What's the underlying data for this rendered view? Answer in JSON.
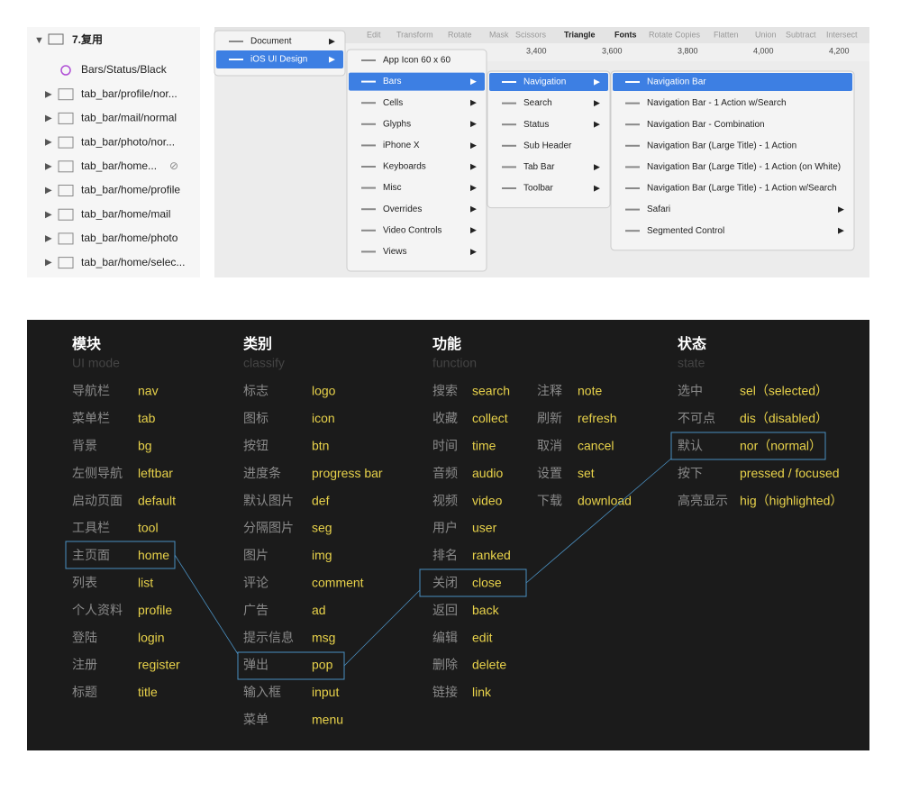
{
  "layers": {
    "group": "7.复用",
    "items": [
      "Bars/Status/Black",
      "tab_bar/profile/nor...",
      "tab_bar/mail/normal",
      "tab_bar/photo/nor...",
      "tab_bar/home...",
      "tab_bar/home/profile",
      "tab_bar/home/mail",
      "tab_bar/home/photo",
      "tab_bar/home/selec..."
    ]
  },
  "menu": {
    "toolbar": [
      "Edit",
      "Transform",
      "Rotate",
      "Mask",
      "Scissors",
      "Triangle",
      "Fonts",
      "Rotate Copies",
      "Flatten",
      "Union",
      "Subtract",
      "Intersect"
    ],
    "ruler": [
      "3,400",
      "3,600",
      "3,800",
      "4,000",
      "4,200"
    ],
    "level1": [
      "Document",
      "iOS UI Design"
    ],
    "level2": [
      "App Icon 60 x 60",
      "Bars",
      "Cells",
      "Glyphs",
      "iPhone X",
      "Keyboards",
      "Misc",
      "Overrides",
      "Video Controls",
      "Views"
    ],
    "level3": [
      "Navigation",
      "Search",
      "Status",
      "Sub Header",
      "Tab Bar",
      "Toolbar"
    ],
    "level4": [
      "Navigation Bar",
      "Navigation Bar - 1 Action w/Search",
      "Navigation Bar - Combination",
      "Navigation Bar (Large Title) - 1 Action",
      "Navigation Bar (Large Title) - 1 Action (on White)",
      "Navigation Bar (Large Title) - 1 Action w/Search",
      "Safari",
      "Segmented Control"
    ]
  },
  "naming": {
    "columns": [
      {
        "title": "模块",
        "subtitle": "UI mode",
        "rows": [
          [
            "导航栏",
            "nav"
          ],
          [
            "菜单栏",
            "tab"
          ],
          [
            "背景",
            "bg"
          ],
          [
            "左侧导航",
            "leftbar"
          ],
          [
            "启动页面",
            "default"
          ],
          [
            "工具栏",
            "tool"
          ],
          [
            "主页面",
            "home"
          ],
          [
            "列表",
            "list"
          ],
          [
            "个人资料",
            "profile"
          ],
          [
            "登陆",
            "login"
          ],
          [
            "注册",
            "register"
          ],
          [
            "标题",
            "title"
          ]
        ]
      },
      {
        "title": "类别",
        "subtitle": "classify",
        "rows": [
          [
            "标志",
            "logo"
          ],
          [
            "图标",
            "icon"
          ],
          [
            "按钮",
            "btn"
          ],
          [
            "进度条",
            "progress bar"
          ],
          [
            "默认图片",
            "def"
          ],
          [
            "分隔图片",
            "seg"
          ],
          [
            "图片",
            "img"
          ],
          [
            "评论",
            "comment"
          ],
          [
            "广告",
            "ad"
          ],
          [
            "提示信息",
            "msg"
          ],
          [
            "弹出",
            "pop"
          ],
          [
            "输入框",
            "input"
          ],
          [
            "菜单",
            "menu"
          ]
        ]
      },
      {
        "title": "功能",
        "subtitle": "function",
        "rows": [
          [
            "搜索",
            "search"
          ],
          [
            "收藏",
            "collect"
          ],
          [
            "时间",
            "time"
          ],
          [
            "音频",
            "audio"
          ],
          [
            "视频",
            "video"
          ],
          [
            "用户",
            "user"
          ],
          [
            "排名",
            "ranked"
          ],
          [
            "关闭",
            "close"
          ],
          [
            "返回",
            "back"
          ],
          [
            "编辑",
            "edit"
          ],
          [
            "删除",
            "delete"
          ],
          [
            "链接",
            "link"
          ]
        ],
        "rows2": [
          [
            "注释",
            "note"
          ],
          [
            "刷新",
            "refresh"
          ],
          [
            "取消",
            "cancel"
          ],
          [
            "设置",
            "set"
          ],
          [
            "下载",
            "download"
          ]
        ]
      },
      {
        "title": "状态",
        "subtitle": "state",
        "rows": [
          [
            "选中",
            "sel（selected）"
          ],
          [
            "不可点",
            "dis（disabled）"
          ],
          [
            "默认",
            "nor（normal）"
          ],
          [
            "按下",
            "pressed / focused"
          ],
          [
            "高亮显示",
            "hig（highlighted）"
          ]
        ]
      }
    ]
  }
}
